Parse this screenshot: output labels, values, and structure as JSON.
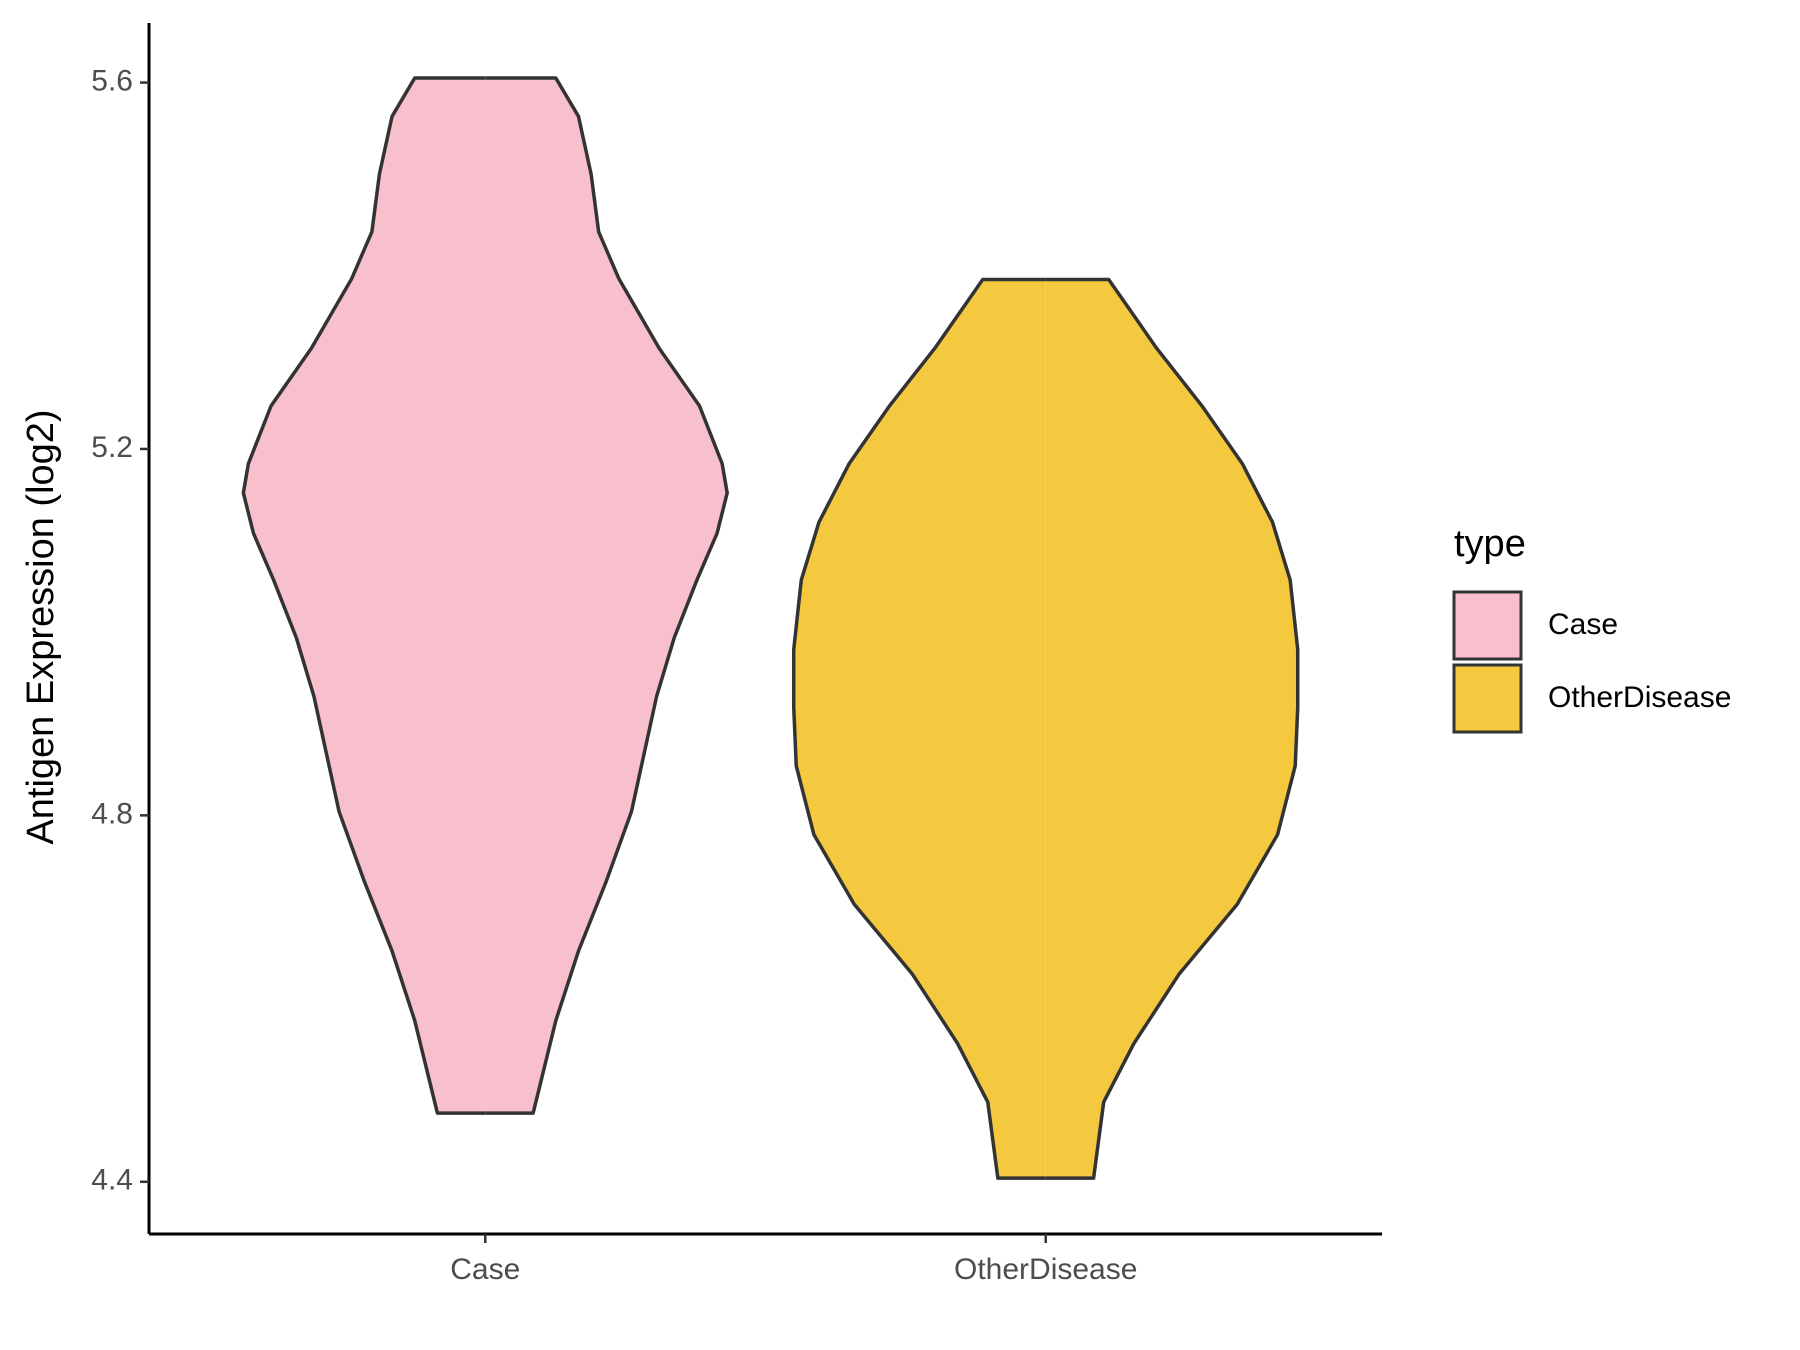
{
  "chart_data": {
    "type": "violin",
    "y_label": "Antigen Expression (log2)",
    "categories": [
      "Case",
      "OtherDisease"
    ],
    "series": [
      {
        "name": "Case",
        "color": "#f7c0cc",
        "y": [
          4.475,
          4.475,
          4.576,
          4.652,
          4.728,
          4.804,
          4.867,
          4.93,
          4.994,
          5.057,
          5.108,
          5.152,
          5.184,
          5.247,
          5.31,
          5.386,
          5.437,
          5.5,
          5.563,
          5.605,
          5.605
        ],
        "density": [
          0,
          0.19,
          0.28,
          0.37,
          0.48,
          0.58,
          0.63,
          0.68,
          0.75,
          0.84,
          0.92,
          0.96,
          0.94,
          0.85,
          0.69,
          0.53,
          0.45,
          0.42,
          0.37,
          0.28,
          0
        ]
      },
      {
        "name": "OtherDisease",
        "color": "#f5c93f",
        "y": [
          4.404,
          4.404,
          4.487,
          4.551,
          4.627,
          4.703,
          4.779,
          4.854,
          4.918,
          4.981,
          5.057,
          5.12,
          5.184,
          5.247,
          5.31,
          5.385,
          5.385
        ],
        "density": [
          0,
          0.19,
          0.23,
          0.35,
          0.53,
          0.76,
          0.92,
          0.99,
          1.0,
          1.0,
          0.97,
          0.9,
          0.78,
          0.62,
          0.44,
          0.25,
          0
        ]
      }
    ],
    "ylim": [
      4.343,
      5.665
    ],
    "yticks": [
      4.4,
      4.8,
      5.2,
      5.6
    ],
    "legend": {
      "title": "type",
      "position": "right"
    }
  }
}
